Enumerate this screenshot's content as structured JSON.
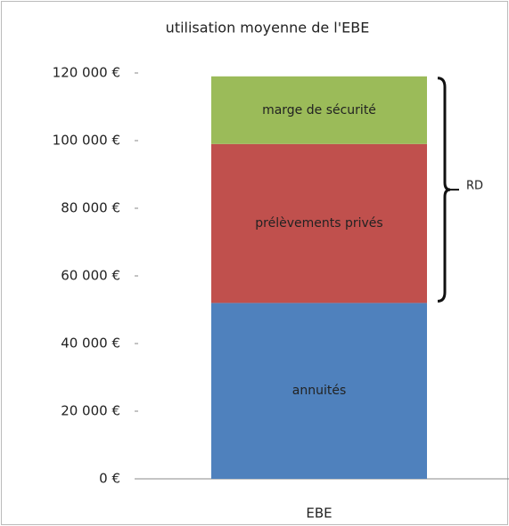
{
  "chart_data": {
    "type": "stacked_bar",
    "title": "utilisation moyenne de l'EBE",
    "categories": [
      "EBE"
    ],
    "series": [
      {
        "name": "annuités",
        "color": "#4f81bd",
        "values": [
          52000
        ]
      },
      {
        "name": "prélèvements privés",
        "color": "#c0504d",
        "values": [
          47000
        ]
      },
      {
        "name": "marge de sécurité",
        "color": "#9bbb59",
        "values": [
          20000
        ]
      }
    ],
    "ylim": [
      0,
      120000
    ],
    "yticks": [
      {
        "value": 0,
        "label": "0 €"
      },
      {
        "value": 20000,
        "label": "20 000 €"
      },
      {
        "value": 40000,
        "label": "40 000 €"
      },
      {
        "value": 60000,
        "label": "60 000 €"
      },
      {
        "value": 80000,
        "label": "80 000 €"
      },
      {
        "value": 100000,
        "label": "100 000 €"
      },
      {
        "value": 120000,
        "label": "120 000 €"
      }
    ],
    "annotations": [
      "RD"
    ],
    "grid": false
  }
}
